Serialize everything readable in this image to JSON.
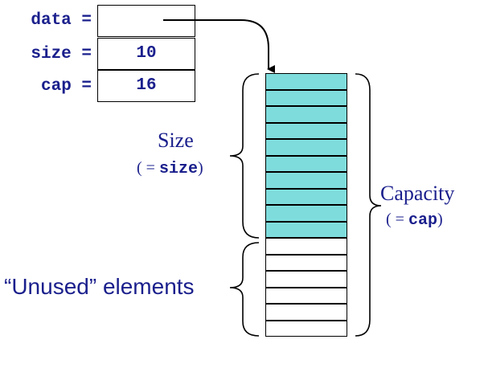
{
  "fields": [
    {
      "label": "data =",
      "value": ""
    },
    {
      "label": "size =",
      "value": "10"
    },
    {
      "label": "cap =",
      "value": "16"
    }
  ],
  "array": {
    "capacity": 16,
    "size": 10,
    "used_color": "#7fdcdc",
    "unused_color": "#ffffff"
  },
  "size_brace": {
    "title": "Size",
    "paren_open": "( = ",
    "code": "size",
    "paren_close": ")"
  },
  "capacity_brace": {
    "title": "Capacity",
    "paren_open": "( = ",
    "code": "cap",
    "paren_close": ")"
  },
  "unused_brace": {
    "label": "“Unused” elements"
  },
  "colors": {
    "text": "#1a1f8c",
    "border": "#000000"
  }
}
